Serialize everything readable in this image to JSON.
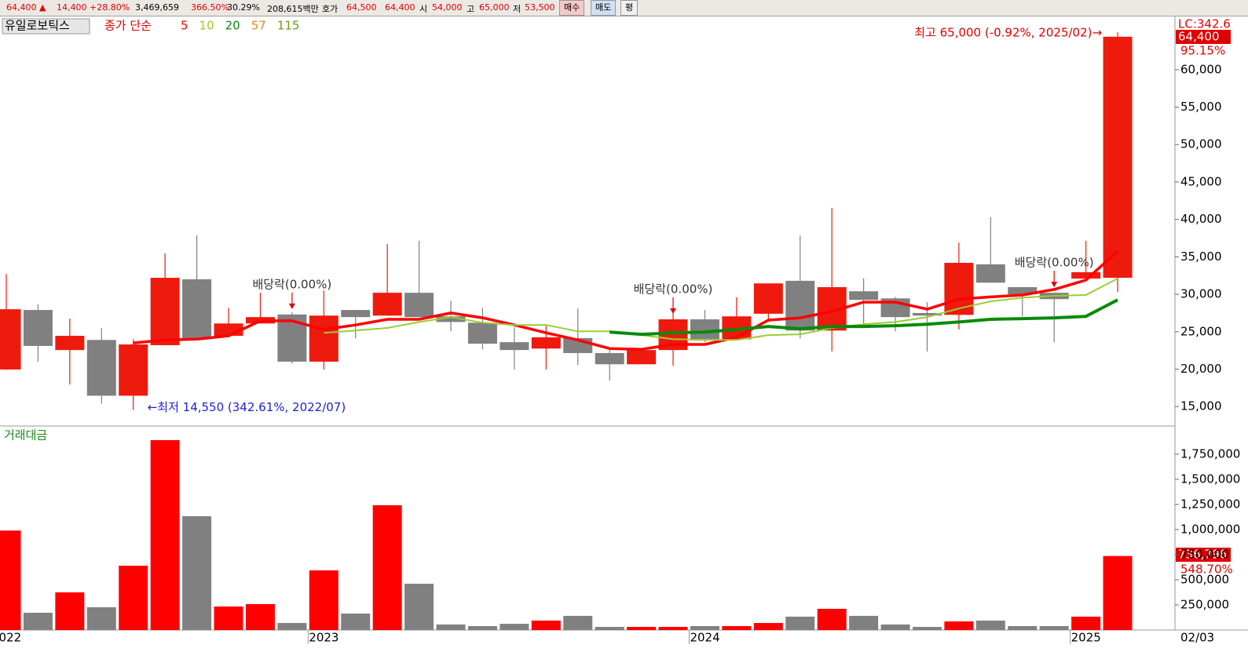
{
  "header": {
    "price": "64,400",
    "arrow": "▲",
    "change": "14,400",
    "change_pct": "+28.80%",
    "volume": "3,469,659",
    "volume_ratio": "366.50%",
    "turnover": "30.29%",
    "amount": "208,615백만",
    "quote_label": "호가",
    "ask": "64,500",
    "bid": "64,400",
    "open_label": "시",
    "open": "54,000",
    "high_label": "고",
    "high": "65,000",
    "low_label": "저",
    "low": "53,500",
    "buttons": [
      "매수",
      "매도",
      "평"
    ]
  },
  "chart_data": [
    {
      "type": "candlestick",
      "title": "유일로보틱스",
      "ma_label": "종가 단순",
      "categories": [
        "2022",
        null,
        null,
        null,
        null,
        null,
        null,
        null,
        null,
        null,
        "2023",
        null,
        null,
        null,
        null,
        null,
        null,
        null,
        null,
        null,
        null,
        null,
        "2024",
        null,
        null,
        null,
        null,
        null,
        null,
        null,
        null,
        null,
        null,
        null,
        "2025",
        null
      ],
      "open": [
        19950,
        27900,
        22550,
        23900,
        16450,
        23200,
        32000,
        24450,
        26100,
        27300,
        21000,
        27900,
        27150,
        30200,
        27050,
        26200,
        23600,
        22750,
        24150,
        22150,
        20650,
        22550,
        26650,
        24000,
        27400,
        31800,
        25150,
        30400,
        29450,
        27500,
        27250,
        34000,
        30950,
        30200,
        32100,
        32200
      ],
      "high": [
        32700,
        28650,
        26750,
        25500,
        24000,
        35450,
        37850,
        28200,
        30200,
        27600,
        30500,
        27900,
        36700,
        37150,
        29150,
        28200,
        25600,
        26000,
        28100,
        22750,
        22750,
        27600,
        27900,
        29600,
        31450,
        37850,
        41550,
        32100,
        29650,
        28950,
        36900,
        40300,
        30950,
        30200,
        37150,
        65000
      ],
      "low": [
        19900,
        21000,
        17950,
        15400,
        14550,
        23200,
        24000,
        24400,
        26100,
        20750,
        19950,
        24100,
        27150,
        26950,
        25050,
        22650,
        19950,
        19950,
        20550,
        18450,
        20650,
        20450,
        23600,
        24000,
        26300,
        24100,
        22350,
        25900,
        25050,
        22350,
        25300,
        31550,
        27050,
        23600,
        32100,
        30300
      ],
      "close": [
        28000,
        23100,
        24450,
        16450,
        23300,
        32200,
        24000,
        26100,
        26950,
        21000,
        27150,
        26950,
        30200,
        26950,
        26300,
        23400,
        22550,
        24250,
        22150,
        20650,
        22550,
        26650,
        24000,
        27050,
        31450,
        25150,
        30950,
        29250,
        26950,
        27150,
        34200,
        31550,
        30000,
        29350,
        32950,
        64400
      ],
      "up_color": "#ee1a0e",
      "down_color": "#808080",
      "series": [
        {
          "name": "5",
          "color": "#ff0000",
          "width": 3.5,
          "values": [
            null,
            null,
            null,
            null,
            23500,
            23900,
            24000,
            24450,
            26450,
            26450,
            25300,
            25900,
            26650,
            26650,
            27500,
            26850,
            25900,
            24850,
            23900,
            22750,
            22650,
            23300,
            23300,
            24250,
            26550,
            26850,
            27700,
            28950,
            28950,
            28000,
            29350,
            29650,
            29900,
            30650,
            31900,
            35750
          ]
        },
        {
          "name": "10",
          "color": "#9acd32",
          "width": 2,
          "values": [
            null,
            null,
            null,
            null,
            null,
            null,
            null,
            null,
            null,
            null,
            24850,
            25150,
            25500,
            26300,
            26950,
            26200,
            25900,
            25900,
            25050,
            25050,
            24550,
            24000,
            23900,
            23900,
            24550,
            24650,
            25500,
            26000,
            26300,
            26950,
            28100,
            29050,
            29550,
            29800,
            29900,
            32100
          ]
        },
        {
          "name": "20",
          "color": "#0a8a0a",
          "width": 4,
          "values": [
            null,
            null,
            null,
            null,
            null,
            null,
            null,
            null,
            null,
            null,
            null,
            null,
            null,
            null,
            null,
            null,
            null,
            null,
            null,
            24950,
            24650,
            24850,
            24950,
            25300,
            25700,
            25400,
            25700,
            25700,
            25800,
            26000,
            26300,
            26650,
            26750,
            26850,
            27050,
            29250
          ]
        }
      ],
      "legend_only": [
        {
          "name": "57",
          "color": "#e8871e"
        },
        {
          "name": "115",
          "color": "#6b9a1a"
        }
      ],
      "events": [
        null,
        null,
        null,
        null,
        null,
        null,
        null,
        null,
        null,
        "배당락(0.00%)",
        null,
        null,
        null,
        null,
        null,
        null,
        null,
        null,
        null,
        null,
        null,
        "배당락(0.00%)",
        null,
        null,
        null,
        null,
        null,
        null,
        null,
        null,
        null,
        null,
        null,
        "배당락(0.00%)",
        null,
        null
      ],
      "high_note": "최고 65,000 (-0.92%, 2025/02)→",
      "low_note": "←최저 14,550 (342.61%, 2022/07)",
      "lc_label": "LC:342.6",
      "last_label": "64,400",
      "last_pct": "95.15%",
      "ylim": [
        12400,
        67000
      ],
      "yticks": [
        {
          "value": 15000,
          "label": "15,000"
        },
        {
          "value": 20000,
          "label": "20,000"
        },
        {
          "value": 25000,
          "label": "25,000"
        },
        {
          "value": 30000,
          "label": "30,000"
        },
        {
          "value": 35000,
          "label": "35,000"
        },
        {
          "value": 40000,
          "label": "40,000"
        },
        {
          "value": 45000,
          "label": "45,000"
        },
        {
          "value": 50000,
          "label": "50,000"
        },
        {
          "value": 55000,
          "label": "55,000"
        },
        {
          "value": 60000,
          "label": "60,000"
        }
      ]
    },
    {
      "type": "bar",
      "title": "거래대금",
      "values": [
        990000,
        172000,
        375000,
        227000,
        640000,
        1890000,
        1133000,
        234000,
        258000,
        70000,
        594000,
        164000,
        1242000,
        461000,
        55000,
        39000,
        62000,
        94000,
        141000,
        31000,
        31000,
        31000,
        39000,
        39000,
        70000,
        133000,
        211000,
        141000,
        55000,
        31000,
        86000,
        94000,
        39000,
        39000,
        133000,
        736796
      ],
      "colors": [
        "#ff0000",
        "#808080",
        "#ff0000",
        "#808080",
        "#ff0000",
        "#ff0000",
        "#808080",
        "#ff0000",
        "#ff0000",
        "#808080",
        "#ff0000",
        "#808080",
        "#ff0000",
        "#808080",
        "#808080",
        "#808080",
        "#808080",
        "#ff0000",
        "#808080",
        "#808080",
        "#ff0000",
        "#ff0000",
        "#808080",
        "#ff0000",
        "#ff0000",
        "#808080",
        "#ff0000",
        "#808080",
        "#808080",
        "#808080",
        "#ff0000",
        "#808080",
        "#808080",
        "#808080",
        "#ff0000",
        "#ff0000"
      ],
      "last_label": "736,796",
      "last_pct": "548.70%",
      "date_label": "02/03",
      "ylim": [
        0,
        2030000
      ],
      "yticks": [
        {
          "value": 250000,
          "label": "250,000"
        },
        {
          "value": 500000,
          "label": "500,000"
        },
        {
          "value": 750000,
          "label": "750,000"
        },
        {
          "value": 1000000,
          "label": "1,000,000"
        },
        {
          "value": 1250000,
          "label": "1,250,000"
        },
        {
          "value": 1500000,
          "label": "1,500,000"
        },
        {
          "value": 1750000,
          "label": "1,750,000"
        }
      ]
    }
  ]
}
